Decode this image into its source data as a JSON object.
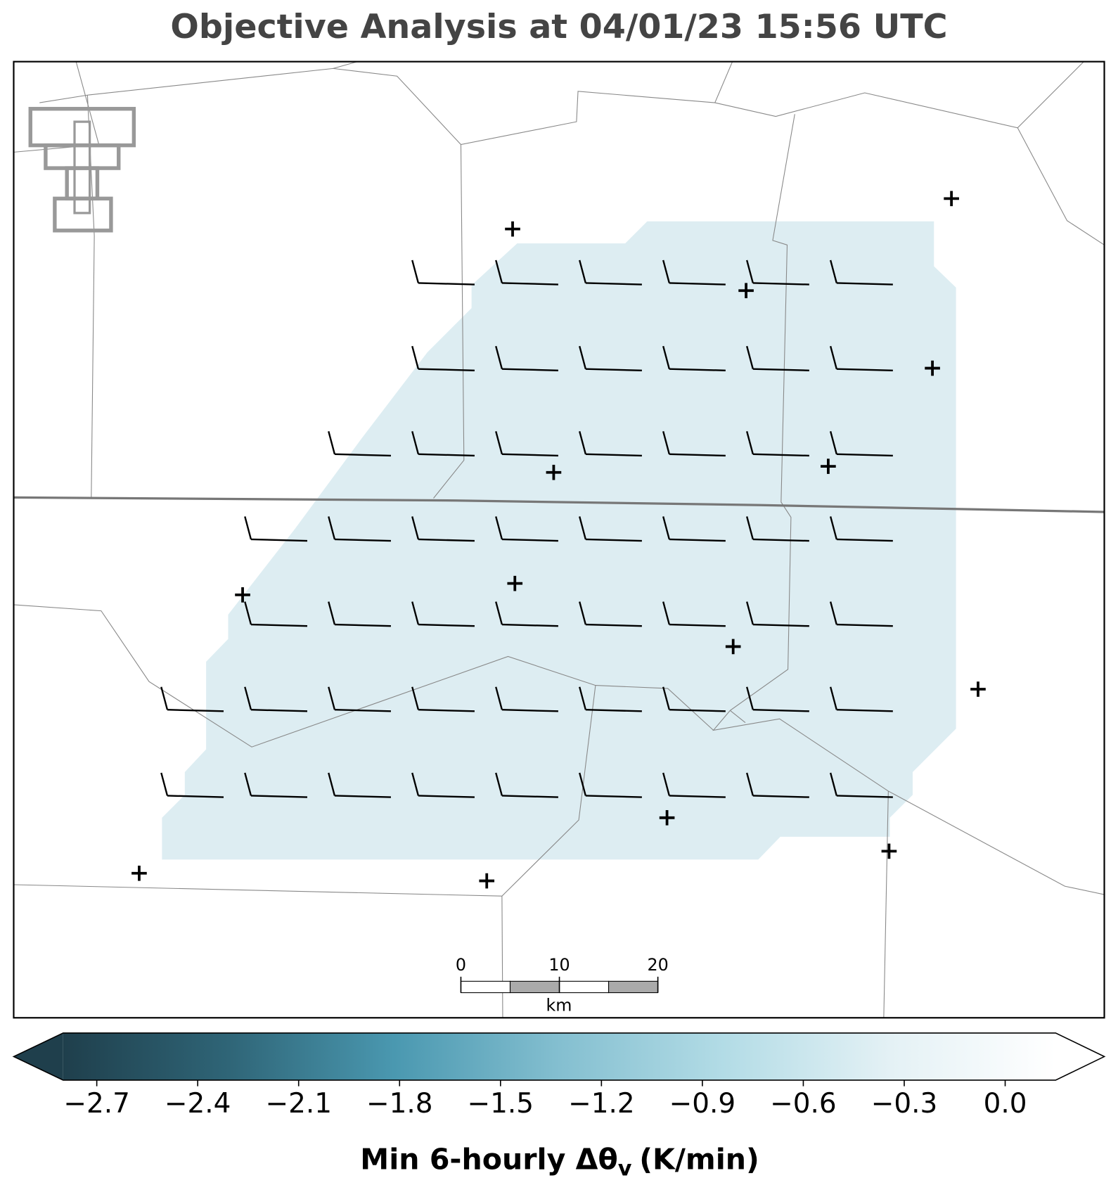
{
  "title": "Objective Analysis at 04/01/23 15:56 UTC",
  "scale_bar": {
    "ticks": [
      0,
      10,
      20
    ],
    "unit": "km"
  },
  "colorbar": {
    "label_main": "Min 6-hourly Δθ",
    "label_subscript": "v",
    "label_units": "(K/min)",
    "vlim": [
      -2.8,
      0.15
    ],
    "colors": [
      "#1f3f4c",
      "#2f6577",
      "#4a98b0",
      "#84bfd0",
      "#b3dce6",
      "#e4f1f5",
      "#ffffff"
    ],
    "ticks": [
      {
        "value": -2.7,
        "label": "−2.7"
      },
      {
        "value": -2.4,
        "label": "−2.4"
      },
      {
        "value": -2.1,
        "label": "−2.1"
      },
      {
        "value": -1.8,
        "label": "−1.8"
      },
      {
        "value": -1.5,
        "label": "−1.5"
      },
      {
        "value": -1.2,
        "label": "−1.2"
      },
      {
        "value": -0.9,
        "label": "−0.9"
      },
      {
        "value": -0.6,
        "label": "−0.6"
      },
      {
        "value": -0.3,
        "label": "−0.3"
      },
      {
        "value": 0.0,
        "label": "0.0"
      }
    ]
  }
}
